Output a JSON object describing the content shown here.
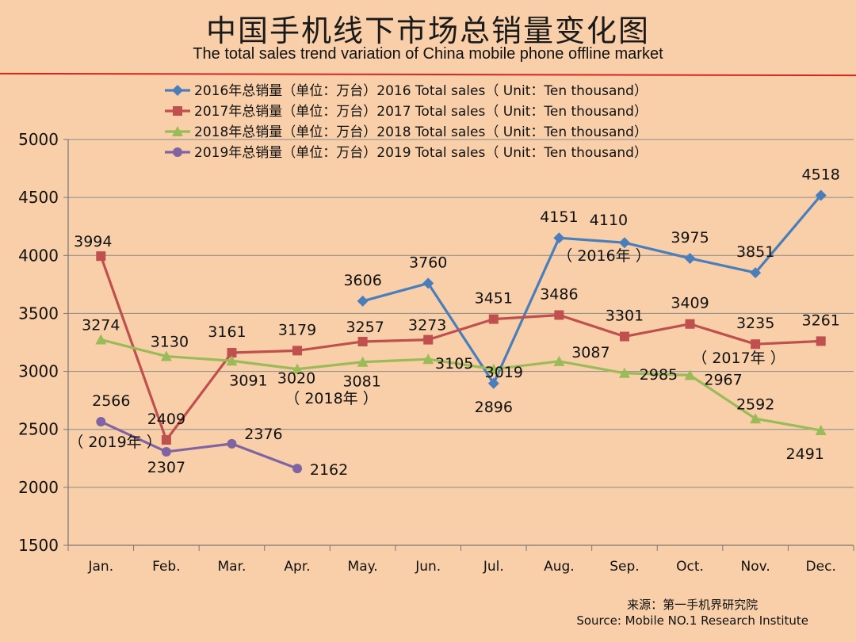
{
  "title_cn": "中国手机线下市场总销量变化图",
  "title_en": "The total sales trend variation of China mobile phone offline market",
  "source_cn": "来源：第一手机界研究院",
  "source_en": "Source: Mobile NO.1 Research Institute",
  "colors": {
    "background": "#f8cfa9",
    "rule": "#d9261c",
    "s2016": "#4a7ebb",
    "s2017": "#c0504d",
    "s2018": "#9bbb59",
    "s2019": "#8064a2"
  },
  "chart_data": {
    "type": "line",
    "categories": [
      "Jan.",
      "Feb.",
      "Mar.",
      "Apr.",
      "May.",
      "Jun.",
      "Jul.",
      "Aug.",
      "Sep.",
      "Oct.",
      "Nov.",
      "Dec."
    ],
    "ylim": [
      1500,
      5000
    ],
    "yticks": [
      "1500",
      "2000",
      "2500",
      "3000",
      "3500",
      "4000",
      "4500",
      "5000"
    ],
    "grid": true,
    "legend_position": "top",
    "series": [
      {
        "name": "2016年总销量（单位：万台）2016 Total sales（ Unit：Ten thousand）",
        "marker": "diamond",
        "values": [
          null,
          null,
          null,
          null,
          3606,
          3760,
          2896,
          4151,
          4110,
          3975,
          3851,
          4518
        ]
      },
      {
        "name": "2017年总销量（单位：万台）2017 Total sales（ Unit：Ten thousand）",
        "marker": "square",
        "values": [
          3994,
          2409,
          3161,
          3179,
          3257,
          3273,
          3451,
          3486,
          3301,
          3409,
          3235,
          3261
        ]
      },
      {
        "name": "2018年总销量（单位：万台）2018 Total sales（ Unit：Ten thousand）",
        "marker": "triangle",
        "values": [
          3274,
          3130,
          3091,
          3020,
          3081,
          3105,
          3019,
          3087,
          2985,
          2967,
          2592,
          2491
        ]
      },
      {
        "name": "2019年总销量（单位：万台）2019 Total sales（ Unit：Ten thousand）",
        "marker": "circle",
        "values": [
          2566,
          2307,
          2376,
          2162,
          null,
          null,
          null,
          null,
          null,
          null,
          null,
          null
        ]
      }
    ],
    "annotations": [
      "（ 2016年 ）",
      "（ 2017年 ）",
      "（ 2018年 ）",
      "（ 2019年 ）"
    ]
  }
}
